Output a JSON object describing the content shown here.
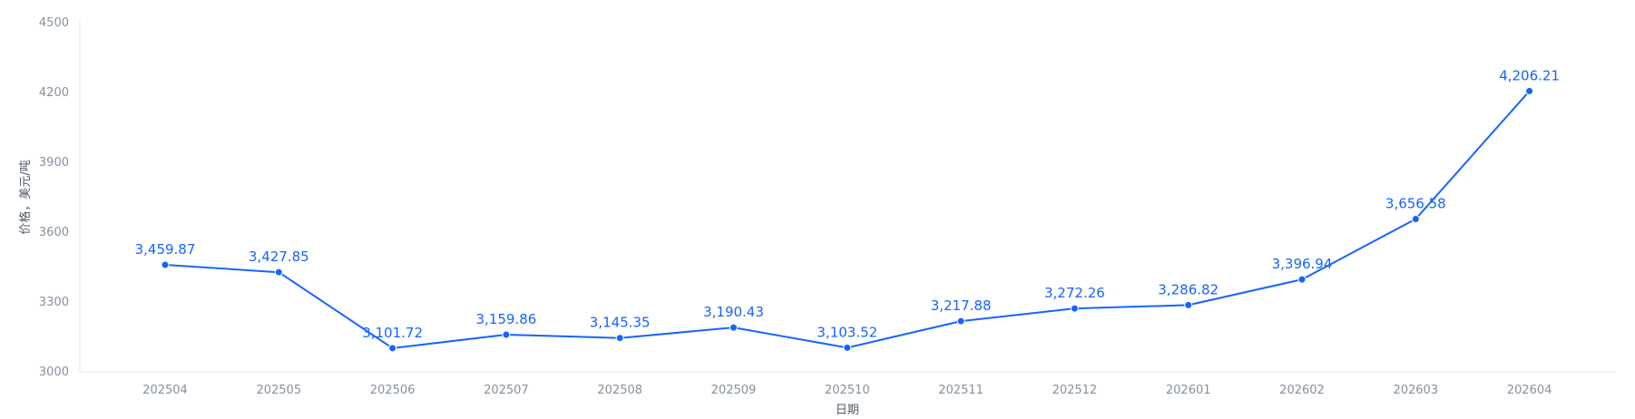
{
  "chart_data": {
    "type": "line",
    "title": "",
    "xlabel": "日期",
    "ylabel": "价格，美元/吨",
    "categories": [
      "202504",
      "202505",
      "202506",
      "202507",
      "202508",
      "202509",
      "202510",
      "202511",
      "202512",
      "202601",
      "202602",
      "202603",
      "202604"
    ],
    "series": [
      {
        "values": [
          3459.87,
          3427.85,
          3101.72,
          3159.86,
          3145.35,
          3190.43,
          3103.52,
          3217.88,
          3272.26,
          3286.82,
          3396.94,
          3656.58,
          4206.21
        ],
        "labels": [
          "3,459.87",
          "3,427.85",
          "3,101.72",
          "3,159.86",
          "3,145.35",
          "3,190.43",
          "3,103.52",
          "3,217.88",
          "3,272.26",
          "3,286.82",
          "3,396.94",
          "3,656.58",
          "4,206.21"
        ]
      }
    ],
    "ylim": [
      3000,
      4500
    ],
    "yticks": [
      "3000",
      "3300",
      "3600",
      "3900",
      "4200",
      "4500"
    ],
    "grid": false,
    "legend": "none",
    "colors": {
      "line": "#1664ff",
      "axis": "#e5e6eb",
      "tick_text": "#86909c",
      "title_text": "#4e5969"
    }
  }
}
